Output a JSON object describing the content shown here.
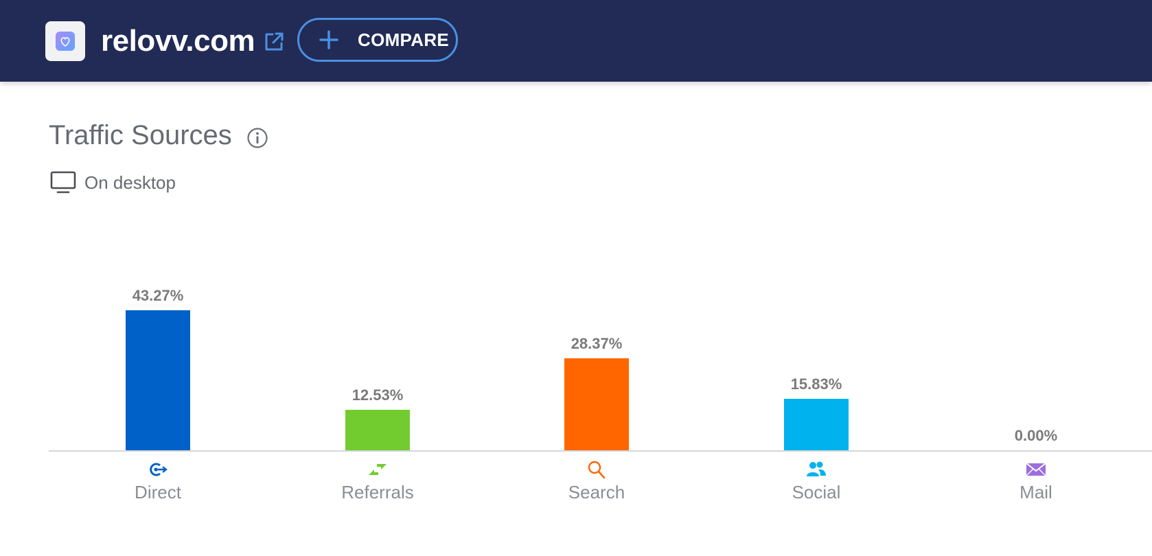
{
  "header": {
    "domain": "relovv.com",
    "compare_label": "COMPARE",
    "background_color": "#212b56",
    "accent_color": "#4a90e2"
  },
  "section": {
    "title": "Traffic Sources",
    "device": "On desktop"
  },
  "icons": {
    "favicon": "heart-icon",
    "external_link": "external-link-icon",
    "compare": "plus-icon",
    "info": "info-icon",
    "device": "desktop-icon"
  },
  "chart_data": {
    "type": "bar",
    "categories": [
      "Direct",
      "Referrals",
      "Search",
      "Social",
      "Mail"
    ],
    "values": [
      43.27,
      12.53,
      28.37,
      15.83,
      0.0
    ],
    "labels": [
      "43.27%",
      "12.53%",
      "28.37%",
      "15.83%",
      "0.00%"
    ],
    "colors": [
      "#0061c9",
      "#72cc2f",
      "#ff6600",
      "#00b2ed",
      "#9c6de0"
    ],
    "icons": [
      "direct-icon",
      "referrals-icon",
      "search-icon",
      "social-icon",
      "mail-icon"
    ],
    "unit": "%"
  }
}
